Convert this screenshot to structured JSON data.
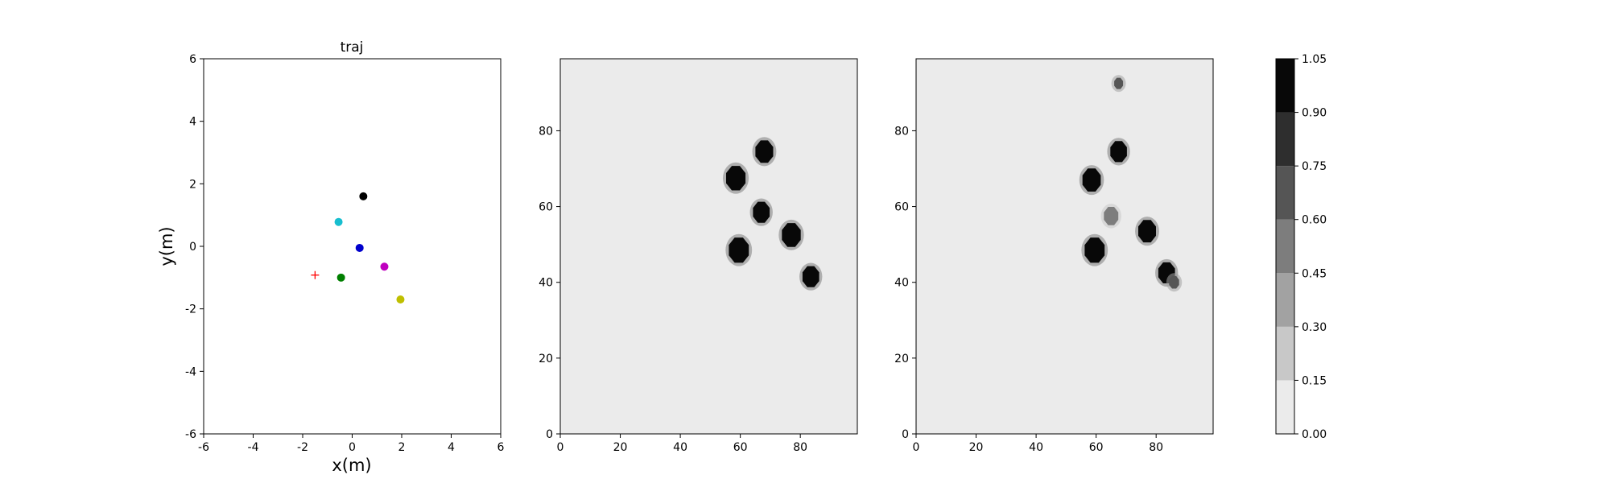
{
  "chart_data": [
    {
      "type": "scatter",
      "title": "traj",
      "xlabel": "x(m)",
      "ylabel": "y(m)",
      "xlim": [
        -6,
        6
      ],
      "ylim": [
        -6,
        6
      ],
      "xticks": [
        -6,
        -4,
        -2,
        0,
        2,
        4,
        6
      ],
      "yticks": [
        -6,
        -4,
        -2,
        0,
        2,
        4,
        6
      ],
      "grid": false,
      "points": [
        {
          "x": 0.45,
          "y": 1.6,
          "color": "#000000",
          "marker": "circle"
        },
        {
          "x": -0.55,
          "y": 0.78,
          "color": "#17becf",
          "marker": "circle"
        },
        {
          "x": 0.3,
          "y": -0.05,
          "color": "#0000cc",
          "marker": "circle"
        },
        {
          "x": 1.3,
          "y": -0.65,
          "color": "#bf00bf",
          "marker": "circle"
        },
        {
          "x": -0.45,
          "y": -1.0,
          "color": "#007f00",
          "marker": "circle"
        },
        {
          "x": 1.95,
          "y": -1.7,
          "color": "#bfbf00",
          "marker": "circle"
        },
        {
          "x": -1.5,
          "y": -0.92,
          "color": "#ff0000",
          "marker": "plus"
        }
      ]
    },
    {
      "type": "heatmap",
      "title": "",
      "xlim": [
        0,
        99
      ],
      "ylim": [
        0,
        99
      ],
      "xticks": [
        0,
        20,
        40,
        60,
        80
      ],
      "yticks": [
        0,
        20,
        40,
        60,
        80
      ],
      "background_value": 0.05,
      "blobs": [
        {
          "x": 68,
          "y": 74.5,
          "radius": 3.2,
          "value": 1.0
        },
        {
          "x": 58.5,
          "y": 67.5,
          "radius": 3.5,
          "value": 1.0
        },
        {
          "x": 67,
          "y": 58.5,
          "radius": 3.0,
          "value": 1.0
        },
        {
          "x": 77,
          "y": 52.5,
          "radius": 3.4,
          "value": 1.0
        },
        {
          "x": 59.5,
          "y": 48.5,
          "radius": 3.6,
          "value": 1.0
        },
        {
          "x": 83.5,
          "y": 41.5,
          "radius": 3.0,
          "value": 1.0
        }
      ]
    },
    {
      "type": "heatmap",
      "title": "",
      "xlim": [
        0,
        99
      ],
      "ylim": [
        0,
        99
      ],
      "xticks": [
        0,
        20,
        40,
        60,
        80
      ],
      "yticks": [
        0,
        20,
        40,
        60,
        80
      ],
      "background_value": 0.05,
      "blobs": [
        {
          "x": 67.5,
          "y": 92.5,
          "radius": 1.6,
          "value": 0.6
        },
        {
          "x": 67.5,
          "y": 74.5,
          "radius": 3.0,
          "value": 1.0
        },
        {
          "x": 58.5,
          "y": 67,
          "radius": 3.3,
          "value": 1.0
        },
        {
          "x": 65,
          "y": 57.5,
          "radius": 2.6,
          "value": 0.45
        },
        {
          "x": 77,
          "y": 53.5,
          "radius": 3.2,
          "value": 1.0
        },
        {
          "x": 59.5,
          "y": 48.5,
          "radius": 3.6,
          "value": 1.0
        },
        {
          "x": 83.5,
          "y": 42.5,
          "radius": 3.0,
          "value": 1.0
        },
        {
          "x": 86,
          "y": 40,
          "radius": 1.8,
          "value": 0.6
        }
      ]
    },
    {
      "type": "colorbar",
      "levels": [
        0.0,
        0.15,
        0.3,
        0.45,
        0.6,
        0.75,
        0.9,
        1.05
      ],
      "tick_labels": [
        "0.00",
        "0.15",
        "0.30",
        "0.45",
        "0.60",
        "0.75",
        "0.90",
        "1.05"
      ],
      "colors": [
        "#ebebeb",
        "#c8c8c8",
        "#a2a2a2",
        "#7d7d7d",
        "#555555",
        "#2e2e2e",
        "#080808"
      ]
    }
  ]
}
